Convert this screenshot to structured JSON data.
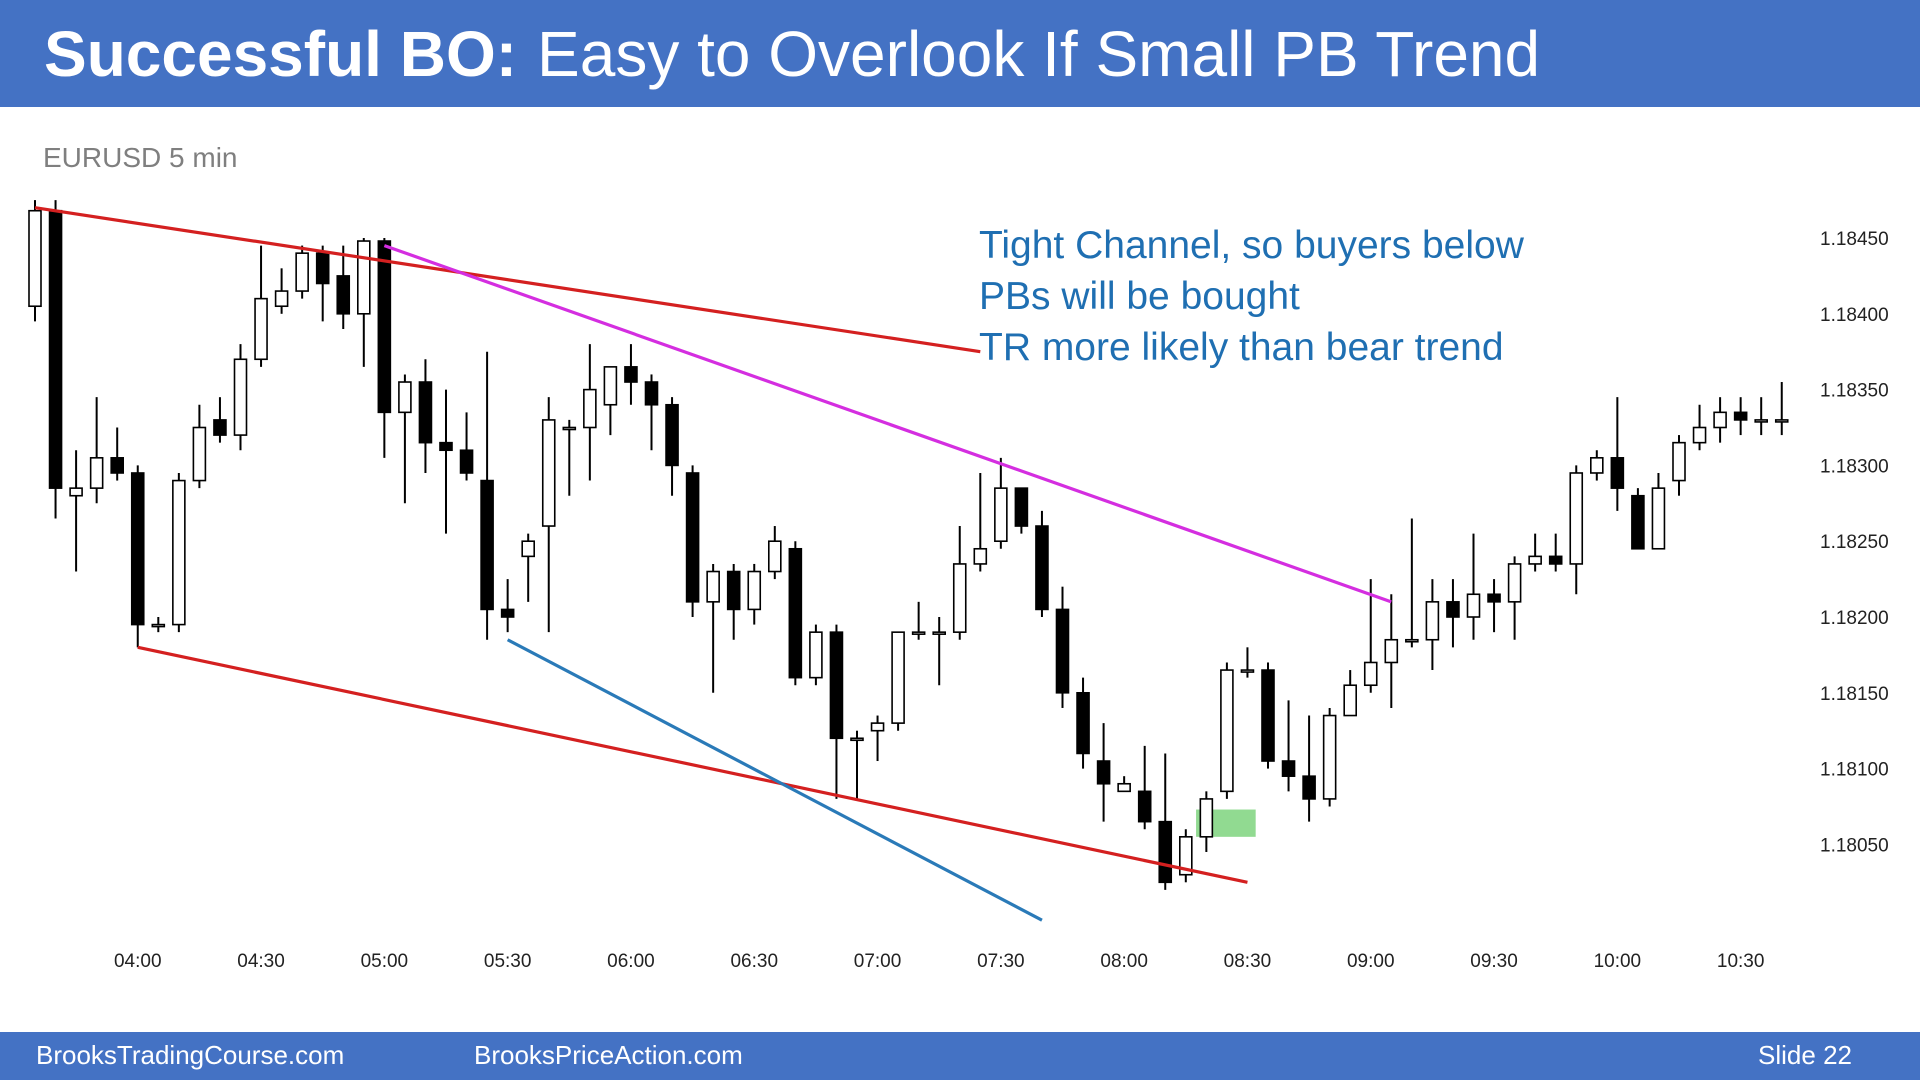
{
  "slide": {
    "title_bold": "Successful BO:",
    "title_rest": "Easy to Overlook If Small PB Trend",
    "instrument": "EURUSD 5 min",
    "annotation_lines": [
      "Tight Channel, so buyers below",
      "PBs will be bought",
      "TR more likely than bear trend"
    ],
    "footer_left": "BrooksTradingCourse.com",
    "footer_center": "BrooksPriceAction.com",
    "footer_right": "Slide  22"
  },
  "colors": {
    "header": "#4472c4",
    "annotation_text": "#1f6fb2",
    "trendline_red": "#d42020",
    "trendline_magenta": "#d42ee0",
    "trendline_blue": "#2a7ab8",
    "highlight_green": "#7ed47e",
    "bull_body": "#ffffff",
    "bear_body": "#000000"
  },
  "chart_data": {
    "type": "candlestick",
    "bar_interval_minutes": 5,
    "x_tick_labels": [
      "04:00",
      "04:30",
      "05:00",
      "05:30",
      "06:00",
      "06:30",
      "07:00",
      "07:30",
      "08:00",
      "08:30",
      "09:00",
      "09:30",
      "10:00",
      "10:30"
    ],
    "y_tick_values": [
      1.1805,
      1.181,
      1.1815,
      1.182,
      1.1825,
      1.183,
      1.1835,
      1.184,
      1.1845
    ],
    "y_tick_labels": [
      "1.18050",
      "1.18100",
      "1.18150",
      "1.18200",
      "1.18250",
      "1.18300",
      "1.18350",
      "1.18400",
      "1.18450"
    ],
    "ylim": [
      1.1799,
      1.18505
    ],
    "grid": false,
    "first_bar_time": "03:35",
    "candles": [
      {
        "o": 1.18405,
        "h": 1.18475,
        "l": 1.18395,
        "c": 1.18468
      },
      {
        "o": 1.18468,
        "h": 1.18475,
        "l": 1.18265,
        "c": 1.18285
      },
      {
        "o": 1.1828,
        "h": 1.1831,
        "l": 1.1823,
        "c": 1.18285
      },
      {
        "o": 1.18285,
        "h": 1.18345,
        "l": 1.18275,
        "c": 1.18305
      },
      {
        "o": 1.18305,
        "h": 1.18325,
        "l": 1.1829,
        "c": 1.18295
      },
      {
        "o": 1.18295,
        "h": 1.183,
        "l": 1.1818,
        "c": 1.18195
      },
      {
        "o": 1.18195,
        "h": 1.182,
        "l": 1.1819,
        "c": 1.18195
      },
      {
        "o": 1.18195,
        "h": 1.18295,
        "l": 1.1819,
        "c": 1.1829
      },
      {
        "o": 1.1829,
        "h": 1.1834,
        "l": 1.18285,
        "c": 1.18325
      },
      {
        "o": 1.1833,
        "h": 1.18345,
        "l": 1.18315,
        "c": 1.1832
      },
      {
        "o": 1.1832,
        "h": 1.1838,
        "l": 1.1831,
        "c": 1.1837
      },
      {
        "o": 1.1837,
        "h": 1.18445,
        "l": 1.18365,
        "c": 1.1841
      },
      {
        "o": 1.18405,
        "h": 1.1843,
        "l": 1.184,
        "c": 1.18415
      },
      {
        "o": 1.18415,
        "h": 1.18445,
        "l": 1.1841,
        "c": 1.1844
      },
      {
        "o": 1.1844,
        "h": 1.18445,
        "l": 1.18395,
        "c": 1.1842
      },
      {
        "o": 1.18425,
        "h": 1.18445,
        "l": 1.1839,
        "c": 1.184
      },
      {
        "o": 1.184,
        "h": 1.1845,
        "l": 1.18365,
        "c": 1.18448
      },
      {
        "o": 1.18448,
        "h": 1.1845,
        "l": 1.18305,
        "c": 1.18335
      },
      {
        "o": 1.18335,
        "h": 1.1836,
        "l": 1.18275,
        "c": 1.18355
      },
      {
        "o": 1.18355,
        "h": 1.1837,
        "l": 1.18295,
        "c": 1.18315
      },
      {
        "o": 1.18315,
        "h": 1.1835,
        "l": 1.18255,
        "c": 1.1831
      },
      {
        "o": 1.1831,
        "h": 1.18335,
        "l": 1.1829,
        "c": 1.18295
      },
      {
        "o": 1.1829,
        "h": 1.18375,
        "l": 1.18185,
        "c": 1.18205
      },
      {
        "o": 1.18205,
        "h": 1.18225,
        "l": 1.1819,
        "c": 1.182
      },
      {
        "o": 1.1824,
        "h": 1.18255,
        "l": 1.1821,
        "c": 1.1825
      },
      {
        "o": 1.1826,
        "h": 1.18345,
        "l": 1.1819,
        "c": 1.1833
      },
      {
        "o": 1.18325,
        "h": 1.1833,
        "l": 1.1828,
        "c": 1.18325
      },
      {
        "o": 1.18325,
        "h": 1.1838,
        "l": 1.1829,
        "c": 1.1835
      },
      {
        "o": 1.1834,
        "h": 1.18365,
        "l": 1.1832,
        "c": 1.18365
      },
      {
        "o": 1.18365,
        "h": 1.1838,
        "l": 1.1834,
        "c": 1.18355
      },
      {
        "o": 1.18355,
        "h": 1.1836,
        "l": 1.1831,
        "c": 1.1834
      },
      {
        "o": 1.1834,
        "h": 1.18345,
        "l": 1.1828,
        "c": 1.183
      },
      {
        "o": 1.18295,
        "h": 1.183,
        "l": 1.182,
        "c": 1.1821
      },
      {
        "o": 1.1821,
        "h": 1.18235,
        "l": 1.1815,
        "c": 1.1823
      },
      {
        "o": 1.1823,
        "h": 1.18235,
        "l": 1.18185,
        "c": 1.18205
      },
      {
        "o": 1.18205,
        "h": 1.18235,
        "l": 1.18195,
        "c": 1.1823
      },
      {
        "o": 1.1823,
        "h": 1.1826,
        "l": 1.18225,
        "c": 1.1825
      },
      {
        "o": 1.18245,
        "h": 1.1825,
        "l": 1.18155,
        "c": 1.1816
      },
      {
        "o": 1.1816,
        "h": 1.18195,
        "l": 1.18155,
        "c": 1.1819
      },
      {
        "o": 1.1819,
        "h": 1.18195,
        "l": 1.1808,
        "c": 1.1812
      },
      {
        "o": 1.1812,
        "h": 1.18125,
        "l": 1.1808,
        "c": 1.1812
      },
      {
        "o": 1.18125,
        "h": 1.18135,
        "l": 1.18105,
        "c": 1.1813
      },
      {
        "o": 1.1813,
        "h": 1.1819,
        "l": 1.18125,
        "c": 1.1819
      },
      {
        "o": 1.1819,
        "h": 1.1821,
        "l": 1.18185,
        "c": 1.1819
      },
      {
        "o": 1.1819,
        "h": 1.182,
        "l": 1.18155,
        "c": 1.1819
      },
      {
        "o": 1.1819,
        "h": 1.1826,
        "l": 1.18185,
        "c": 1.18235
      },
      {
        "o": 1.18235,
        "h": 1.18295,
        "l": 1.1823,
        "c": 1.18245
      },
      {
        "o": 1.1825,
        "h": 1.18305,
        "l": 1.18245,
        "c": 1.18285
      },
      {
        "o": 1.18285,
        "h": 1.18285,
        "l": 1.18255,
        "c": 1.1826
      },
      {
        "o": 1.1826,
        "h": 1.1827,
        "l": 1.182,
        "c": 1.18205
      },
      {
        "o": 1.18205,
        "h": 1.1822,
        "l": 1.1814,
        "c": 1.1815
      },
      {
        "o": 1.1815,
        "h": 1.1816,
        "l": 1.181,
        "c": 1.1811
      },
      {
        "o": 1.18105,
        "h": 1.1813,
        "l": 1.18065,
        "c": 1.1809
      },
      {
        "o": 1.18085,
        "h": 1.18095,
        "l": 1.18085,
        "c": 1.1809
      },
      {
        "o": 1.18085,
        "h": 1.18115,
        "l": 1.1806,
        "c": 1.18065
      },
      {
        "o": 1.18065,
        "h": 1.1811,
        "l": 1.1802,
        "c": 1.18025
      },
      {
        "o": 1.1803,
        "h": 1.1806,
        "l": 1.18025,
        "c": 1.18055
      },
      {
        "o": 1.18055,
        "h": 1.18085,
        "l": 1.18045,
        "c": 1.1808
      },
      {
        "o": 1.18085,
        "h": 1.1817,
        "l": 1.1808,
        "c": 1.18165
      },
      {
        "o": 1.18165,
        "h": 1.1818,
        "l": 1.1816,
        "c": 1.18165
      },
      {
        "o": 1.18165,
        "h": 1.1817,
        "l": 1.181,
        "c": 1.18105
      },
      {
        "o": 1.18105,
        "h": 1.18145,
        "l": 1.18085,
        "c": 1.18095
      },
      {
        "o": 1.18095,
        "h": 1.18135,
        "l": 1.18065,
        "c": 1.1808
      },
      {
        "o": 1.1808,
        "h": 1.1814,
        "l": 1.18075,
        "c": 1.18135
      },
      {
        "o": 1.18135,
        "h": 1.18165,
        "l": 1.18135,
        "c": 1.18155
      },
      {
        "o": 1.18155,
        "h": 1.18225,
        "l": 1.1815,
        "c": 1.1817
      },
      {
        "o": 1.1817,
        "h": 1.18215,
        "l": 1.1814,
        "c": 1.18185
      },
      {
        "o": 1.18185,
        "h": 1.18265,
        "l": 1.1818,
        "c": 1.18185
      },
      {
        "o": 1.18185,
        "h": 1.18225,
        "l": 1.18165,
        "c": 1.1821
      },
      {
        "o": 1.1821,
        "h": 1.18225,
        "l": 1.1818,
        "c": 1.182
      },
      {
        "o": 1.182,
        "h": 1.18255,
        "l": 1.18185,
        "c": 1.18215
      },
      {
        "o": 1.18215,
        "h": 1.18225,
        "l": 1.1819,
        "c": 1.1821
      },
      {
        "o": 1.1821,
        "h": 1.1824,
        "l": 1.18185,
        "c": 1.18235
      },
      {
        "o": 1.18235,
        "h": 1.18255,
        "l": 1.1823,
        "c": 1.1824
      },
      {
        "o": 1.1824,
        "h": 1.18255,
        "l": 1.1823,
        "c": 1.18235
      },
      {
        "o": 1.18235,
        "h": 1.183,
        "l": 1.18215,
        "c": 1.18295
      },
      {
        "o": 1.18295,
        "h": 1.1831,
        "l": 1.1829,
        "c": 1.18305
      },
      {
        "o": 1.18305,
        "h": 1.18345,
        "l": 1.1827,
        "c": 1.18285
      },
      {
        "o": 1.1828,
        "h": 1.18285,
        "l": 1.18245,
        "c": 1.18245
      },
      {
        "o": 1.18245,
        "h": 1.18295,
        "l": 1.18245,
        "c": 1.18285
      },
      {
        "o": 1.1829,
        "h": 1.1832,
        "l": 1.1828,
        "c": 1.18315
      },
      {
        "o": 1.18315,
        "h": 1.1834,
        "l": 1.1831,
        "c": 1.18325
      },
      {
        "o": 1.18325,
        "h": 1.18345,
        "l": 1.18315,
        "c": 1.18335
      },
      {
        "o": 1.18335,
        "h": 1.18345,
        "l": 1.1832,
        "c": 1.1833
      },
      {
        "o": 1.1833,
        "h": 1.18345,
        "l": 1.1832,
        "c": 1.1833
      },
      {
        "o": 1.1833,
        "h": 1.18355,
        "l": 1.1832,
        "c": 1.1833
      }
    ],
    "trendlines": [
      {
        "name": "bear-channel-top",
        "color": "red",
        "from": {
          "bar": 0,
          "price": 1.1847
        },
        "to": {
          "bar": 46,
          "price": 1.18375
        }
      },
      {
        "name": "bear-channel-bottom",
        "color": "red",
        "from": {
          "bar": 5,
          "price": 1.1818
        },
        "to": {
          "bar": 59,
          "price": 1.18025
        }
      },
      {
        "name": "tight-bear-channel",
        "color": "magenta",
        "from": {
          "bar": 17,
          "price": 1.18445
        },
        "to": {
          "bar": 66,
          "price": 1.1821
        }
      },
      {
        "name": "steep-channel",
        "color": "blue",
        "from": {
          "bar": 23,
          "price": 1.18185
        },
        "to": {
          "bar": 49,
          "price": 1.18
        }
      }
    ],
    "highlight_box": {
      "bar_from": 56.5,
      "bar_to": 59.4,
      "price_from": 1.18055,
      "price_to": 1.18073
    }
  }
}
